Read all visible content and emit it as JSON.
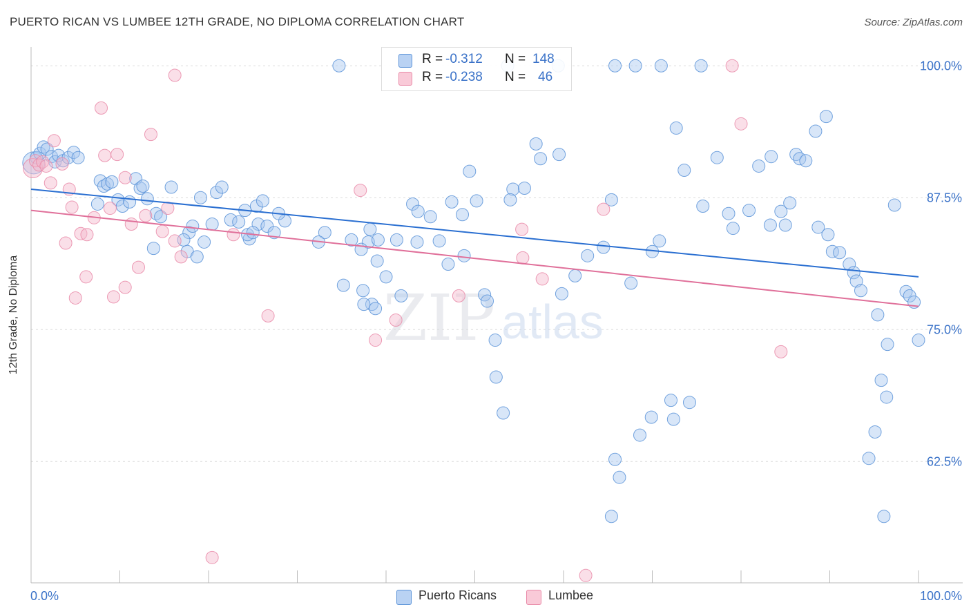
{
  "header": {
    "title": "PUERTO RICAN VS LUMBEE 12TH GRADE, NO DIPLOMA CORRELATION CHART",
    "source": "Source: ZipAtlas.com"
  },
  "watermark": {
    "zip": "ZIP",
    "atlas": "atlas"
  },
  "legend_top": {
    "rows": [
      {
        "r_label": "R =",
        "r_value": "-0.312",
        "n_label": "N =",
        "n_value": "148",
        "color": "#a8c8f0"
      },
      {
        "r_label": "R =",
        "r_value": "-0.238",
        "n_label": "N =",
        "n_value": "46",
        "color": "#f5b8cb"
      }
    ]
  },
  "legend_bottom": {
    "items": [
      {
        "label": "Puerto Ricans",
        "color": "#a8c8f0"
      },
      {
        "label": "Lumbee",
        "color": "#f5b8cb"
      }
    ]
  },
  "chart_data": {
    "type": "scatter",
    "title": "PUERTO RICAN VS LUMBEE 12TH GRADE, NO DIPLOMA CORRELATION CHART",
    "xlabel": "",
    "ylabel": "12th Grade, No Diploma",
    "xlim": [
      0,
      100
    ],
    "ylim": [
      51,
      101
    ],
    "x_tick_labels": [
      "0.0%",
      "100.0%"
    ],
    "y_ticks": [
      62.5,
      75.0,
      87.5,
      100.0
    ],
    "y_tick_labels": [
      "62.5%",
      "75.0%",
      "87.5%",
      "100.0%"
    ],
    "grid": true,
    "legend_position": "bottom",
    "series": [
      {
        "name": "Puerto Ricans",
        "color": "#5b93d8",
        "fill": "#a8c8f0",
        "trend": {
          "x": [
            0,
            100
          ],
          "y": [
            88.3,
            80.0
          ],
          "color": "#2a6fd1"
        },
        "points": [
          [
            0.3,
            90.8
          ],
          [
            0.6,
            91.3
          ],
          [
            1.0,
            91.7
          ],
          [
            1.4,
            92.3
          ],
          [
            1.8,
            92.1
          ],
          [
            2.3,
            91.4
          ],
          [
            2.7,
            90.9
          ],
          [
            3.1,
            91.5
          ],
          [
            3.6,
            91.0
          ],
          [
            4.2,
            91.3
          ],
          [
            4.8,
            91.8
          ],
          [
            5.3,
            91.3
          ],
          [
            7.8,
            89.1
          ],
          [
            8.2,
            88.6
          ],
          [
            8.6,
            88.8
          ],
          [
            9.1,
            89.0
          ],
          [
            11.8,
            89.3
          ],
          [
            12.3,
            88.4
          ],
          [
            12.6,
            88.6
          ],
          [
            7.5,
            86.9
          ],
          [
            9.8,
            87.3
          ],
          [
            10.3,
            86.7
          ],
          [
            11.1,
            87.1
          ],
          [
            13.1,
            87.4
          ],
          [
            14.1,
            86.0
          ],
          [
            14.6,
            85.7
          ],
          [
            15.8,
            88.5
          ],
          [
            13.8,
            82.7
          ],
          [
            17.8,
            84.2
          ],
          [
            18.2,
            84.8
          ],
          [
            17.2,
            83.5
          ],
          [
            17.6,
            82.4
          ],
          [
            18.7,
            81.9
          ],
          [
            19.5,
            83.3
          ],
          [
            20.4,
            85.0
          ],
          [
            19.1,
            87.5
          ],
          [
            20.9,
            88.0
          ],
          [
            21.5,
            88.5
          ],
          [
            22.5,
            85.4
          ],
          [
            23.4,
            85.2
          ],
          [
            24.1,
            86.3
          ],
          [
            25.4,
            86.7
          ],
          [
            26.1,
            87.2
          ],
          [
            24.6,
            83.6
          ],
          [
            25.6,
            85.0
          ],
          [
            26.6,
            84.8
          ],
          [
            24.4,
            84.0
          ],
          [
            25.0,
            84.2
          ],
          [
            28.6,
            85.3
          ],
          [
            27.4,
            84.2
          ],
          [
            27.9,
            86.0
          ],
          [
            33.1,
            84.2
          ],
          [
            32.4,
            83.3
          ],
          [
            38.0,
            83.3
          ],
          [
            36.1,
            83.5
          ],
          [
            37.2,
            82.6
          ],
          [
            38.2,
            84.5
          ],
          [
            39.1,
            83.5
          ],
          [
            41.2,
            83.5
          ],
          [
            39.0,
            81.5
          ],
          [
            40.0,
            80.0
          ],
          [
            35.2,
            79.2
          ],
          [
            37.4,
            78.7
          ],
          [
            38.4,
            77.4
          ],
          [
            41.7,
            78.2
          ],
          [
            43.5,
            83.3
          ],
          [
            43.0,
            86.9
          ],
          [
            45.0,
            85.7
          ],
          [
            46.0,
            83.4
          ],
          [
            43.6,
            86.2
          ],
          [
            47.4,
            87.1
          ],
          [
            48.6,
            85.9
          ],
          [
            49.4,
            90.0
          ],
          [
            50.2,
            87.2
          ],
          [
            47.0,
            81.2
          ],
          [
            48.8,
            82.0
          ],
          [
            51.1,
            78.3
          ],
          [
            51.4,
            77.7
          ],
          [
            52.3,
            74.0
          ],
          [
            52.4,
            70.5
          ],
          [
            53.2,
            67.1
          ],
          [
            37.5,
            77.4
          ],
          [
            38.8,
            77.0
          ],
          [
            54.3,
            88.3
          ],
          [
            54.0,
            87.3
          ],
          [
            55.6,
            88.4
          ],
          [
            56.9,
            92.6
          ],
          [
            57.4,
            91.2
          ],
          [
            59.5,
            91.6
          ],
          [
            62.7,
            82.0
          ],
          [
            61.3,
            80.1
          ],
          [
            59.8,
            78.4
          ],
          [
            65.4,
            87.3
          ],
          [
            64.5,
            82.8
          ],
          [
            67.6,
            79.4
          ],
          [
            70.0,
            82.4
          ],
          [
            72.1,
            68.3
          ],
          [
            72.4,
            66.5
          ],
          [
            74.2,
            68.1
          ],
          [
            69.9,
            66.7
          ],
          [
            68.6,
            65.0
          ],
          [
            65.8,
            62.7
          ],
          [
            65.4,
            57.3
          ],
          [
            66.3,
            61.0
          ],
          [
            70.8,
            83.4
          ],
          [
            72.7,
            94.1
          ],
          [
            73.6,
            90.1
          ],
          [
            77.3,
            91.3
          ],
          [
            75.7,
            86.7
          ],
          [
            78.6,
            86.0
          ],
          [
            79.1,
            84.6
          ],
          [
            80.9,
            86.3
          ],
          [
            82.0,
            90.5
          ],
          [
            83.4,
            91.4
          ],
          [
            86.2,
            91.6
          ],
          [
            86.6,
            91.2
          ],
          [
            87.3,
            91.0
          ],
          [
            85.5,
            87.0
          ],
          [
            84.5,
            86.2
          ],
          [
            83.3,
            84.9
          ],
          [
            85.0,
            84.9
          ],
          [
            88.7,
            84.7
          ],
          [
            89.8,
            84.0
          ],
          [
            90.3,
            82.4
          ],
          [
            91.1,
            82.3
          ],
          [
            92.2,
            81.2
          ],
          [
            92.7,
            80.4
          ],
          [
            93.0,
            79.6
          ],
          [
            93.5,
            78.7
          ],
          [
            95.4,
            76.4
          ],
          [
            96.5,
            73.6
          ],
          [
            95.8,
            70.2
          ],
          [
            96.4,
            68.6
          ],
          [
            95.1,
            65.3
          ],
          [
            94.4,
            62.8
          ],
          [
            96.1,
            57.3
          ],
          [
            97.3,
            86.8
          ],
          [
            98.6,
            78.6
          ],
          [
            99.0,
            78.2
          ],
          [
            99.5,
            77.6
          ],
          [
            100.0,
            74.0
          ],
          [
            88.4,
            93.8
          ],
          [
            89.6,
            95.2
          ],
          [
            34.7,
            100.0
          ],
          [
            53.7,
            100.0
          ],
          [
            59.4,
            100.0
          ],
          [
            65.8,
            100.0
          ],
          [
            71.0,
            100.0
          ],
          [
            68.1,
            100.0
          ],
          [
            75.5,
            100.0
          ]
        ]
      },
      {
        "name": "Lumbee",
        "color": "#e98aa8",
        "fill": "#f5b8cb",
        "trend": {
          "x": [
            0,
            100
          ],
          "y": [
            86.3,
            77.2
          ],
          "color": "#e0709a"
        },
        "points": [
          [
            0.2,
            90.3
          ],
          [
            0.5,
            91.0
          ],
          [
            0.9,
            90.6
          ],
          [
            1.3,
            90.9
          ],
          [
            1.7,
            90.5
          ],
          [
            2.2,
            88.9
          ],
          [
            2.6,
            92.9
          ],
          [
            3.5,
            90.7
          ],
          [
            4.3,
            88.3
          ],
          [
            4.6,
            86.6
          ],
          [
            5.6,
            84.1
          ],
          [
            6.3,
            84.0
          ],
          [
            7.1,
            85.6
          ],
          [
            7.9,
            96.0
          ],
          [
            8.3,
            91.5
          ],
          [
            8.9,
            86.5
          ],
          [
            9.7,
            91.6
          ],
          [
            10.6,
            89.4
          ],
          [
            11.3,
            85.0
          ],
          [
            12.1,
            80.9
          ],
          [
            12.9,
            85.8
          ],
          [
            13.5,
            93.5
          ],
          [
            14.8,
            84.3
          ],
          [
            15.4,
            86.5
          ],
          [
            16.2,
            83.4
          ],
          [
            16.9,
            81.9
          ],
          [
            5.0,
            78.0
          ],
          [
            6.2,
            80.0
          ],
          [
            9.3,
            78.1
          ],
          [
            10.6,
            79.0
          ],
          [
            3.9,
            83.2
          ],
          [
            16.2,
            99.1
          ],
          [
            22.8,
            84.0
          ],
          [
            26.7,
            76.3
          ],
          [
            37.1,
            88.2
          ],
          [
            38.8,
            74.0
          ],
          [
            41.1,
            75.9
          ],
          [
            48.2,
            78.2
          ],
          [
            55.3,
            84.5
          ],
          [
            55.4,
            81.8
          ],
          [
            57.6,
            79.8
          ],
          [
            64.5,
            86.4
          ],
          [
            80.0,
            94.5
          ],
          [
            84.5,
            72.9
          ],
          [
            79.0,
            100.0
          ],
          [
            20.4,
            53.4
          ],
          [
            62.5,
            51.7
          ]
        ]
      }
    ]
  }
}
